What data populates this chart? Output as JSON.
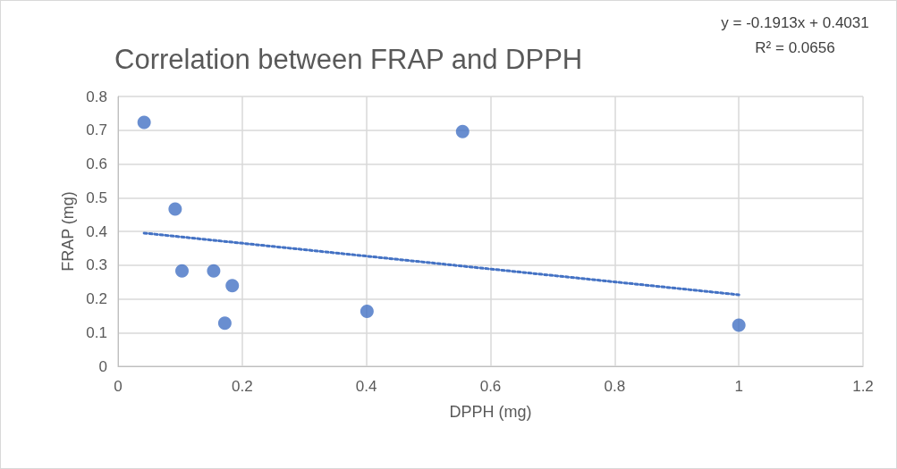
{
  "chart_data": {
    "type": "scatter",
    "title": "Correlation between FRAP and DPPH",
    "xlabel": "DPPH (mg)",
    "ylabel": "FRAP (mg)",
    "annotations": [
      "y = -0.1913x + 0.4031",
      "R² = 0.0656"
    ],
    "series": [
      {
        "color": "#4472c4",
        "marker": "circle",
        "x": [
          0.042,
          0.092,
          0.103,
          0.154,
          0.184,
          0.172,
          0.401,
          0.555,
          1.0
        ],
        "values": [
          0.723,
          0.466,
          0.283,
          0.283,
          0.239,
          0.128,
          0.163,
          0.696,
          0.122
        ]
      },
      {
        "type": "line",
        "color": "#4472c4",
        "line_style": "dotted",
        "marker": "none",
        "x": [
          0.042,
          1.0
        ],
        "values": [
          0.395,
          0.212
        ]
      }
    ],
    "xlim": [
      0,
      1.2
    ],
    "xticks": [
      0,
      0.2,
      0.4,
      0.6,
      0.8,
      1,
      1.2
    ],
    "ylim": [
      0,
      0.8
    ],
    "yticks": [
      0,
      0.1,
      0.2,
      0.3,
      0.4,
      0.5,
      0.6,
      0.7,
      0.8
    ],
    "grid": true,
    "legend": false
  }
}
